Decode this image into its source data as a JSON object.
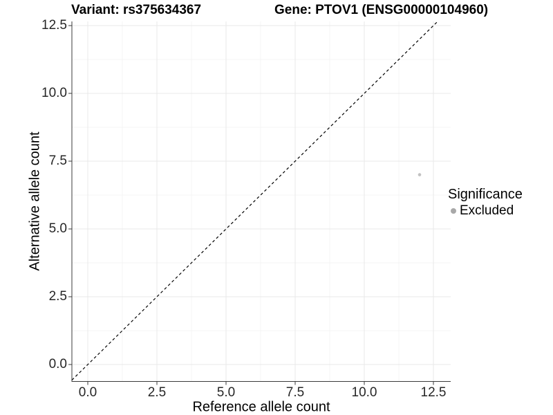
{
  "chart_data": {
    "type": "scatter",
    "title_left": "Variant: rs375634367",
    "title_right": "Gene: PTOV1 (ENSG00000104960)",
    "xlabel": "Reference allele count",
    "ylabel": "Alternative allele count",
    "xlim": [
      0,
      12.5
    ],
    "ylim": [
      0,
      12.5
    ],
    "x_ticks": [
      0,
      2.5,
      5,
      7.5,
      10,
      12.5
    ],
    "x_tick_labels": [
      "0.0",
      "2.5",
      "5.0",
      "7.5",
      "10.0",
      "12.5"
    ],
    "y_ticks": [
      0,
      2.5,
      5,
      7.5,
      10,
      12.5
    ],
    "y_tick_labels": [
      "0.0",
      "2.5",
      "5.0",
      "7.5",
      "10.0",
      "12.5"
    ],
    "grid": "major+minor",
    "points": [
      {
        "x": 12,
        "y": 7,
        "series": "Excluded"
      }
    ],
    "reference_line": {
      "slope": 1,
      "intercept": 0,
      "style": "dashed",
      "color": "#000000"
    },
    "legend": {
      "title": "Significance",
      "position": "right",
      "items": [
        {
          "label": "Excluded",
          "color": "#a8a8a8",
          "marker": "circle"
        }
      ]
    },
    "colors": {
      "background": "#ffffff",
      "point": "#c2c2c2",
      "grid_major": "#e9e9e9",
      "grid_minor": "#f4f4f4",
      "axis_line": "#3a3a3a",
      "tick": "#3a3a3a",
      "text": "#1a1a1a"
    }
  }
}
